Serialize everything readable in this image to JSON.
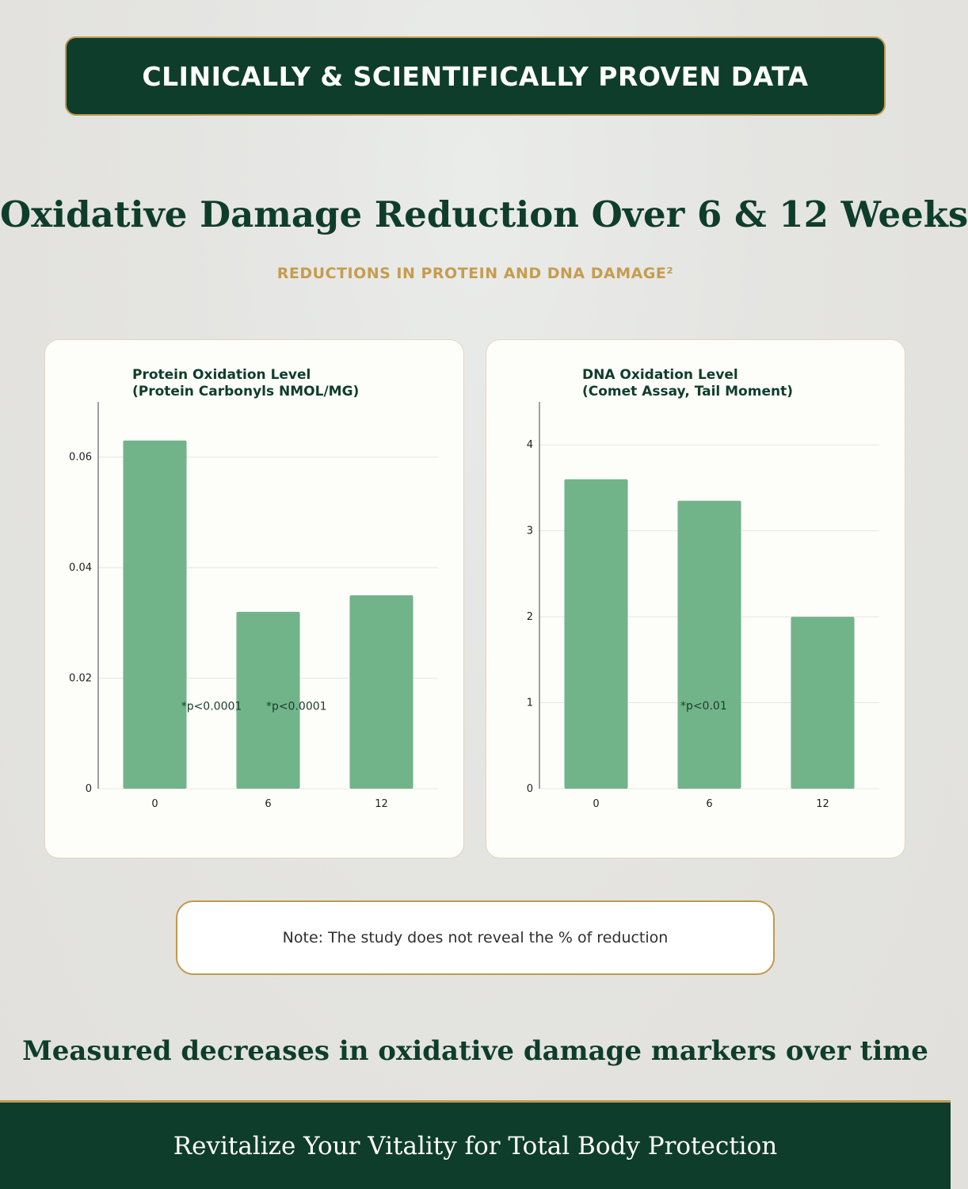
{
  "header": {
    "banner_text": "CLINICALLY & SCIENTIFICALLY PROVEN DATA"
  },
  "main": {
    "title": "Oxidative Damage Reduction Over 6 & 12 Weeks",
    "subtitle": "REDUCTIONS IN PROTEIN AND DNA DAMAGE²"
  },
  "colors": {
    "bar": "#72b48a",
    "dark_green": "#0f3d2b",
    "gold": "#c09a4e"
  },
  "chart_data": [
    {
      "type": "bar",
      "title_lines": [
        "Protein Oxidation Level",
        "(Protein Carbonyls NMOL/MG)"
      ],
      "categories": [
        "0",
        "6",
        "12"
      ],
      "values": [
        0.063,
        0.032,
        0.035
      ],
      "ylim": [
        0,
        0.07
      ],
      "yticks": [
        0,
        0.02,
        0.04,
        0.06
      ],
      "ytick_labels": [
        "0",
        "0.02",
        "0.04",
        "0.06"
      ],
      "grid": true,
      "annotations": [
        {
          "text": "*p<0.0001",
          "x": 0.5,
          "y": 0.015
        },
        {
          "text": "*p<0.0001",
          "x": 1.25,
          "y": 0.015
        }
      ]
    },
    {
      "type": "bar",
      "title_lines": [
        "DNA Oxidation Level",
        "(Comet Assay, Tail Moment)"
      ],
      "categories": [
        "0",
        "6",
        "12"
      ],
      "values": [
        3.6,
        3.35,
        2.0
      ],
      "ylim": [
        0,
        4.5
      ],
      "yticks": [
        0,
        1,
        2,
        3,
        4
      ],
      "ytick_labels": [
        "0",
        "1",
        "2",
        "3",
        "4"
      ],
      "grid": true,
      "annotations": [
        {
          "text": "*p<0.01",
          "x": 0.95,
          "y": 0.97
        }
      ]
    }
  ],
  "note": {
    "text": "Note: The study does not reveal the % of reduction"
  },
  "tagline": "Measured decreases in oxidative damage markers over time",
  "footer": {
    "text": "Revitalize Your Vitality for Total Body Protection"
  }
}
